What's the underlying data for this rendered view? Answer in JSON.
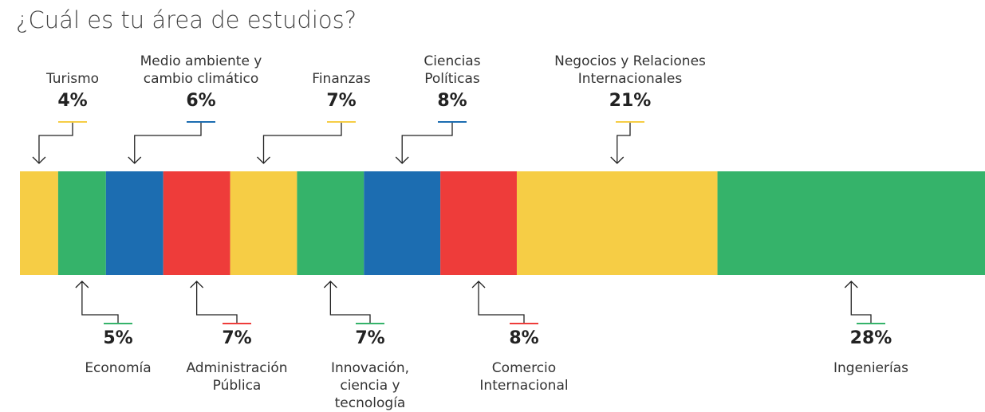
{
  "chart_data": {
    "type": "bar",
    "title": "¿Cuál es tu área de estudios?",
    "categories": [
      "Turismo",
      "Economía",
      "Medio ambiente y\ncambio climático",
      "Administración\nPública",
      "Finanzas",
      "Innovación,\nciencia y\ntecnología",
      "Ciencias\nPolíticas",
      "Comercio\nInternacional",
      "Negocios y Relaciones\nInternacionales",
      "Ingenierías"
    ],
    "values": [
      4,
      5,
      6,
      7,
      7,
      7,
      8,
      8,
      21,
      28
    ],
    "value_labels": [
      "4%",
      "5%",
      "6%",
      "7%",
      "7%",
      "7%",
      "8%",
      "8%",
      "21%",
      "28%"
    ],
    "colors": [
      "#f6cd45",
      "#35b36a",
      "#1c6db1",
      "#ee3c3a",
      "#f6cd45",
      "#35b36a",
      "#1c6db1",
      "#ee3c3a",
      "#f6cd45",
      "#35b36a"
    ]
  }
}
